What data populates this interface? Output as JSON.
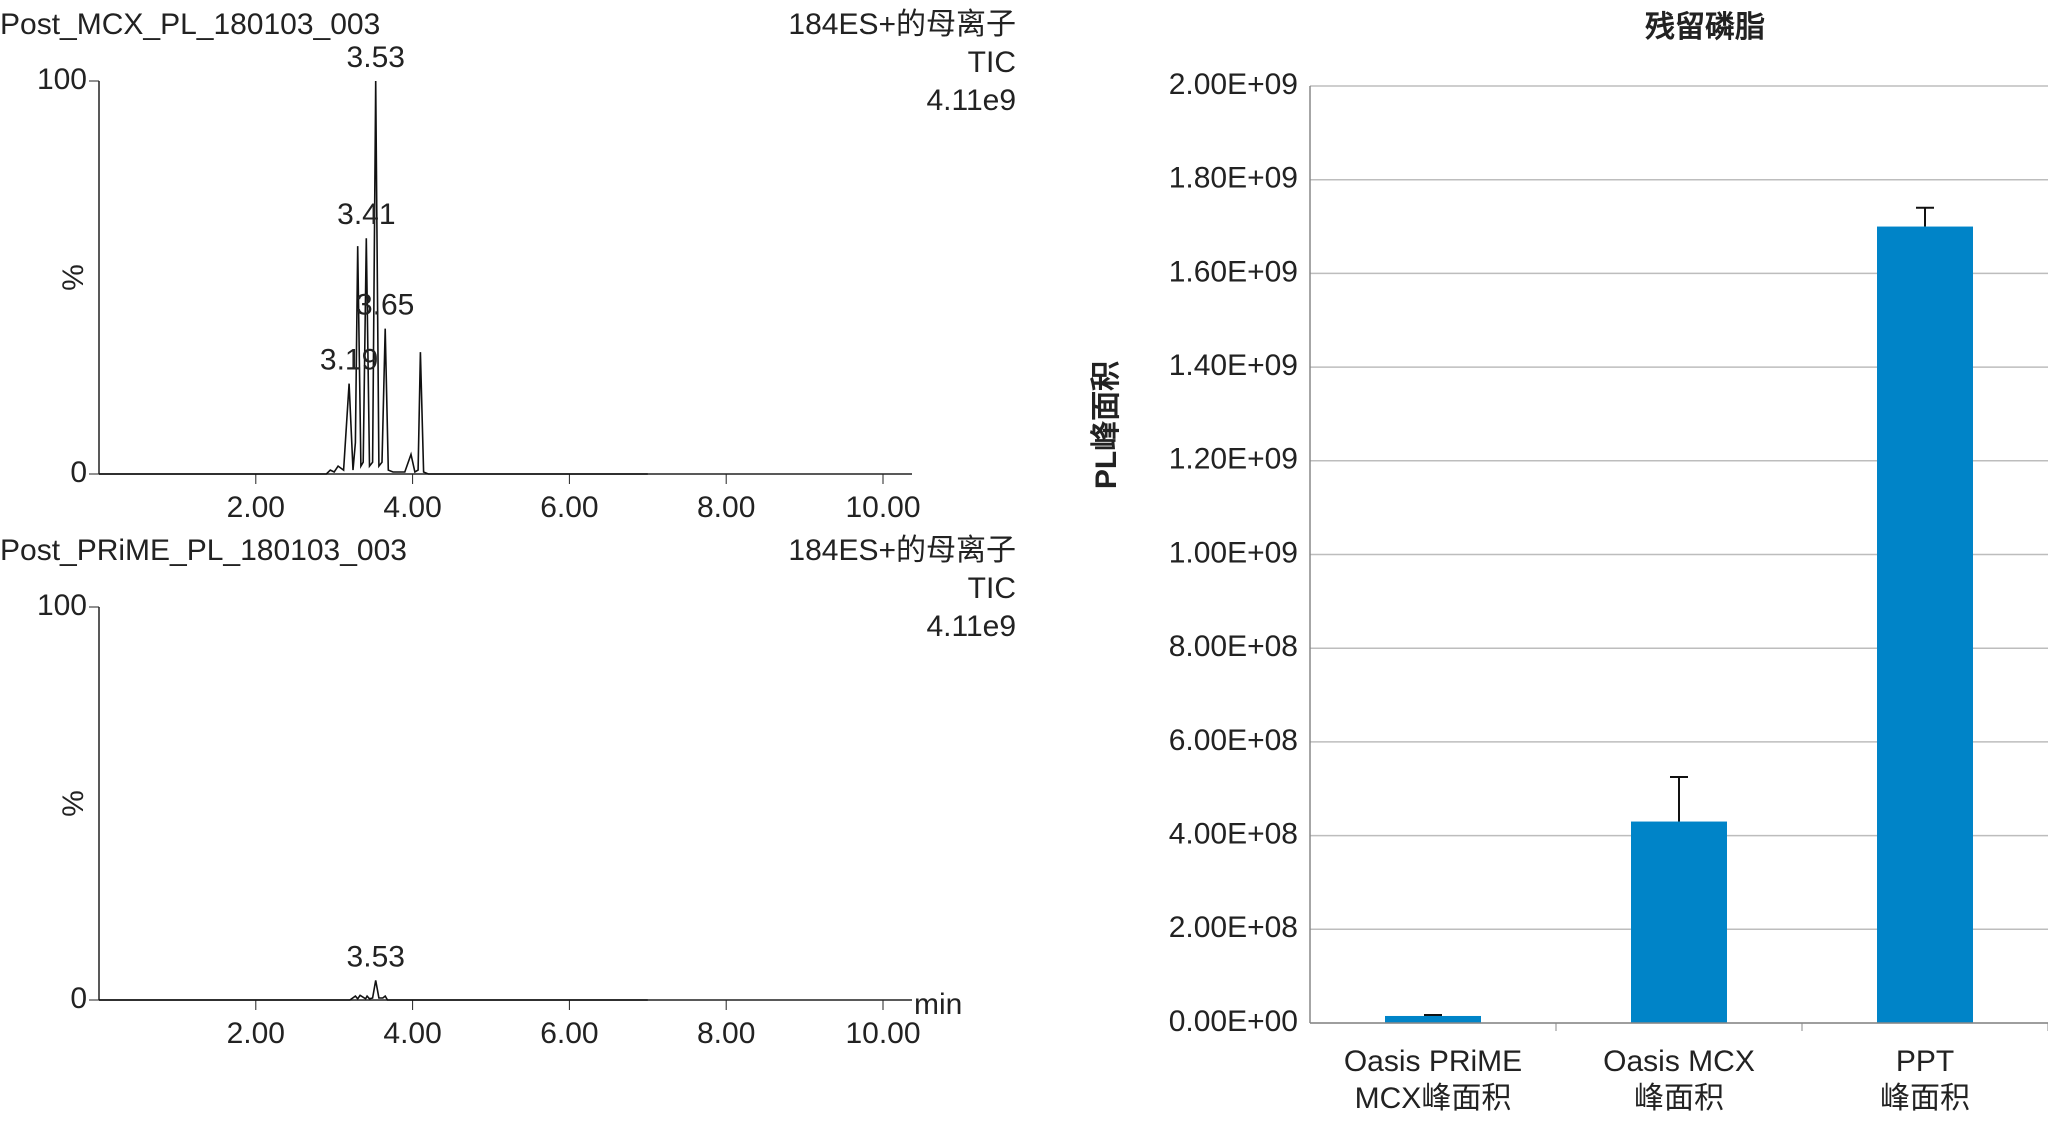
{
  "chart_data": [
    {
      "type": "line",
      "title": "Post_MCX_PL_180103_003",
      "subtitle": [
        "184ES+的母离子",
        "TIC",
        "4.11e9"
      ],
      "color": "#9cb53a",
      "ylabel": "%",
      "x": [
        0,
        2.9,
        2.95,
        3.0,
        3.05,
        3.12,
        3.19,
        3.24,
        3.27,
        3.3,
        3.34,
        3.37,
        3.41,
        3.45,
        3.49,
        3.53,
        3.57,
        3.61,
        3.65,
        3.69,
        3.75,
        3.9,
        3.98,
        4.03,
        4.07,
        4.1,
        4.14,
        4.2,
        7.0
      ],
      "values": [
        0,
        0,
        1,
        0.5,
        2,
        1,
        23,
        1,
        8,
        58,
        2,
        3,
        60,
        2,
        3,
        100,
        2,
        3,
        37,
        1,
        0.5,
        0.5,
        5,
        0.5,
        1,
        31,
        0.5,
        0,
        0
      ],
      "peak_labels": [
        {
          "x": 3.53,
          "y": 100
        },
        {
          "x": 3.41,
          "y": 60
        },
        {
          "x": 3.65,
          "y": 37
        },
        {
          "x": 3.19,
          "y": 23
        }
      ],
      "xlim": [
        0,
        10.37
      ],
      "ylim": [
        0,
        100
      ],
      "xticks": [
        {
          "value": 2,
          "label": "2.00"
        },
        {
          "value": 4,
          "label": "4.00"
        },
        {
          "value": 6,
          "label": "6.00"
        },
        {
          "value": 8,
          "label": "8.00"
        },
        {
          "value": 10,
          "label": "10.00"
        }
      ],
      "yticks": [
        0,
        100
      ]
    },
    {
      "type": "line",
      "title": "Post_PRiME_PL_180103_003",
      "subtitle": [
        "184ES+的母离子",
        "TIC",
        "4.11e9"
      ],
      "color": "#9b2d6b",
      "ylabel": "%",
      "xlabel": "min",
      "x": [
        0,
        3.2,
        3.27,
        3.3,
        3.33,
        3.4,
        3.42,
        3.45,
        3.49,
        3.53,
        3.57,
        3.62,
        3.65,
        3.68,
        7.0
      ],
      "values": [
        0,
        0,
        1,
        0.3,
        1.2,
        0.3,
        1,
        0.3,
        0.5,
        5,
        0.5,
        0.5,
        1,
        0,
        0
      ],
      "peak_labels": [
        {
          "x": 3.53,
          "y": 5
        }
      ],
      "xlim": [
        0,
        10.37
      ],
      "ylim": [
        0,
        100
      ],
      "xticks": [
        {
          "value": 2,
          "label": "2.00"
        },
        {
          "value": 4,
          "label": "4.00"
        },
        {
          "value": 6,
          "label": "6.00"
        },
        {
          "value": 8,
          "label": "8.00"
        },
        {
          "value": 10,
          "label": "10.00"
        }
      ],
      "yticks": [
        0,
        100
      ]
    },
    {
      "type": "bar",
      "title": "残留磷脂",
      "ylabel": "PL峰面积",
      "color": "#0084c8",
      "grid": true,
      "categories": [
        [
          "Oasis PRiME",
          "MCX峰面积"
        ],
        [
          "Oasis MCX",
          "峰面积"
        ],
        [
          "PPT",
          "峰面积"
        ]
      ],
      "values": [
        15000000,
        430000000,
        1700000000
      ],
      "errors": [
        2000000,
        95000000,
        40000000
      ],
      "ylim": [
        0,
        2000000000
      ],
      "yticks": [
        {
          "value": 0,
          "label": "0.00E+00"
        },
        {
          "value": 200000000,
          "label": "2.00E+08"
        },
        {
          "value": 400000000,
          "label": "4.00E+08"
        },
        {
          "value": 600000000,
          "label": "6.00E+08"
        },
        {
          "value": 800000000,
          "label": "8.00E+08"
        },
        {
          "value": 1000000000,
          "label": "1.00E+09"
        },
        {
          "value": 1200000000,
          "label": "1.20E+09"
        },
        {
          "value": 1400000000,
          "label": "1.40E+09"
        },
        {
          "value": 1600000000,
          "label": "1.60E+09"
        },
        {
          "value": 1800000000,
          "label": "1.80E+09"
        },
        {
          "value": 2000000000,
          "label": "2.00E+09"
        }
      ]
    }
  ]
}
